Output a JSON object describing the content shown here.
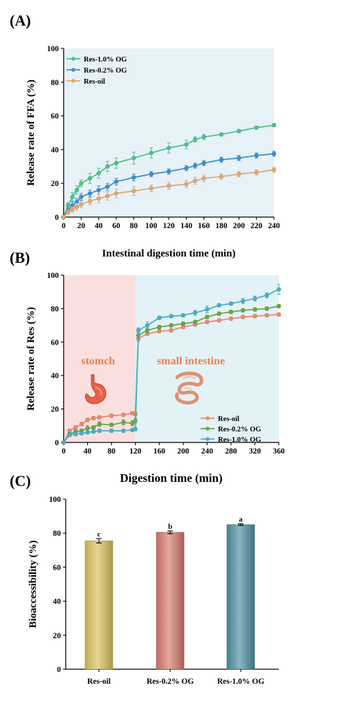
{
  "chart_data": [
    {
      "panel": "(A)",
      "type": "line",
      "xlabel": "Intestinal digestion time (min)",
      "ylabel": "Release rate of FFA (%)",
      "xlim": [
        0,
        240
      ],
      "ylim": [
        0,
        100
      ],
      "xticks": [
        0,
        20,
        40,
        60,
        80,
        100,
        120,
        140,
        160,
        180,
        200,
        220,
        240
      ],
      "yticks": [
        0,
        20,
        40,
        60,
        80,
        100
      ],
      "grid": false,
      "background": "#e6f1f8",
      "legend_position": "top-left",
      "series": [
        {
          "name": "Res-1.0% OG",
          "color": "#52c08a",
          "x": [
            0,
            5,
            10,
            15,
            20,
            30,
            40,
            50,
            60,
            80,
            100,
            120,
            140,
            150,
            160,
            180,
            200,
            220,
            240
          ],
          "y": [
            0,
            7,
            12,
            16,
            20,
            23,
            26,
            30,
            32,
            35,
            38,
            41,
            43,
            46,
            47.5,
            49,
            51,
            53,
            54.5
          ],
          "err": [
            0.5,
            1.5,
            2.5,
            2.5,
            2,
            3,
            3,
            3,
            3,
            3.5,
            3,
            3,
            2.5,
            1.5,
            1.5,
            1,
            1,
            1,
            1
          ]
        },
        {
          "name": "Res-0.2% OG",
          "color": "#3e8fd0",
          "x": [
            0,
            5,
            10,
            15,
            20,
            30,
            40,
            50,
            60,
            80,
            100,
            120,
            140,
            150,
            160,
            180,
            200,
            220,
            240
          ],
          "y": [
            0,
            4,
            7,
            9,
            12,
            14,
            16,
            18,
            21,
            23.5,
            25.5,
            27,
            29,
            30.5,
            32,
            34,
            35,
            36.5,
            37.5
          ],
          "err": [
            0.5,
            1.5,
            2,
            2,
            2,
            2,
            2.5,
            2,
            2,
            2,
            1.5,
            1.5,
            1.5,
            1.5,
            1.5,
            1.5,
            1.5,
            1.5,
            1.5
          ]
        },
        {
          "name": "Res-oil",
          "color": "#e0aa72",
          "x": [
            0,
            5,
            10,
            15,
            20,
            30,
            40,
            50,
            60,
            80,
            100,
            120,
            140,
            150,
            160,
            180,
            200,
            220,
            240
          ],
          "y": [
            0,
            3,
            4.5,
            6,
            7.5,
            9.5,
            11,
            12.5,
            14,
            15.5,
            17,
            18.5,
            19.5,
            21.5,
            23,
            24,
            25.5,
            26.5,
            28
          ],
          "err": [
            0.5,
            1.5,
            1.5,
            2,
            2,
            2,
            2.5,
            2.5,
            2.5,
            2.5,
            2,
            2,
            2,
            2,
            2,
            1.5,
            1.5,
            1.5,
            1.5
          ]
        }
      ]
    },
    {
      "panel": "(B)",
      "type": "line",
      "xlabel": "Digestion time (min)",
      "ylabel": "Release rate of Res (%)",
      "xlim": [
        0,
        360
      ],
      "ylim": [
        0,
        100
      ],
      "xticks": [
        0,
        40,
        80,
        120,
        160,
        200,
        240,
        280,
        320,
        360
      ],
      "yticks": [
        0,
        20,
        40,
        60,
        80,
        100
      ],
      "grid": false,
      "legend_position": "bottom-right",
      "regions": [
        {
          "label": "stomch",
          "x0": 0,
          "x1": 120,
          "fill": "#f9e0de",
          "text_color": "#e8824e",
          "icon": "stomach-icon"
        },
        {
          "label": "small intestine",
          "x0": 120,
          "x1": 360,
          "fill": "#e3f2f7",
          "text_color": "#e8824e",
          "icon": "intestine-icon"
        }
      ],
      "series": [
        {
          "name": "Res-oil",
          "color": "#ee8873",
          "x": [
            0,
            10,
            20,
            30,
            40,
            50,
            60,
            80,
            100,
            115,
            120,
            125,
            140,
            160,
            180,
            200,
            220,
            240,
            260,
            280,
            300,
            320,
            340,
            360
          ],
          "y": [
            0,
            7,
            9,
            11,
            13.5,
            14.5,
            15,
            16,
            16.5,
            17.5,
            17,
            62,
            65,
            66.5,
            67,
            69,
            70.5,
            72,
            73,
            74,
            75,
            75.5,
            76,
            76.5
          ],
          "err": [
            0.5,
            1,
            1,
            1,
            1,
            1,
            1,
            1,
            1,
            1,
            1,
            1.5,
            1,
            1,
            1,
            1,
            1,
            1,
            1,
            1,
            1,
            1,
            1,
            1
          ]
        },
        {
          "name": "Res-0.2% OG",
          "color": "#6aa646",
          "x": [
            0,
            10,
            20,
            30,
            40,
            50,
            60,
            80,
            100,
            115,
            120,
            125,
            140,
            160,
            180,
            200,
            220,
            240,
            260,
            280,
            300,
            320,
            340,
            360
          ],
          "y": [
            0,
            5,
            6.5,
            7,
            8.5,
            9,
            11,
            10.5,
            12,
            11.5,
            13,
            64,
            67,
            69,
            70,
            71,
            72,
            75,
            77,
            78,
            79,
            79.5,
            80,
            81.5
          ],
          "err": [
            0.5,
            1,
            1,
            1,
            1.5,
            1,
            1.5,
            1,
            1.5,
            1.5,
            1.5,
            1.5,
            1.5,
            1,
            1,
            1,
            1,
            1,
            1,
            1,
            1,
            1,
            1,
            1
          ]
        },
        {
          "name": "Res-1.0% OG",
          "color": "#4ab0c6",
          "x": [
            0,
            10,
            20,
            30,
            40,
            50,
            60,
            80,
            100,
            115,
            120,
            125,
            140,
            160,
            180,
            200,
            220,
            240,
            260,
            280,
            300,
            320,
            340,
            360
          ],
          "y": [
            0,
            4.5,
            5,
            5.5,
            6,
            6.5,
            7,
            7,
            7,
            7.5,
            8,
            67,
            70,
            74.5,
            75.5,
            76,
            77.5,
            79.5,
            82,
            83,
            84.5,
            86,
            88,
            91.5
          ],
          "err": [
            0.5,
            1,
            1,
            1,
            1,
            1,
            1,
            1,
            1,
            1,
            1,
            1.5,
            2,
            1,
            1,
            1,
            1.5,
            2,
            1,
            1,
            1.5,
            1.5,
            1.5,
            3
          ]
        }
      ]
    },
    {
      "panel": "(C)",
      "type": "bar",
      "ylabel": "Bioaccessibility (%)",
      "ylim": [
        0,
        100
      ],
      "yticks": [
        0,
        20,
        40,
        60,
        80,
        100
      ],
      "grid": false,
      "categories": [
        "Res-oil",
        "Res-0.2% OG",
        "Res-1.0% OG"
      ],
      "values": [
        75.5,
        80.5,
        85
      ],
      "errors": [
        1.3,
        0.8,
        0.5
      ],
      "letters": [
        "c",
        "b",
        "a"
      ],
      "colors": [
        "#d6be5a",
        "#d4786a",
        "#4c8fa0"
      ]
    }
  ]
}
